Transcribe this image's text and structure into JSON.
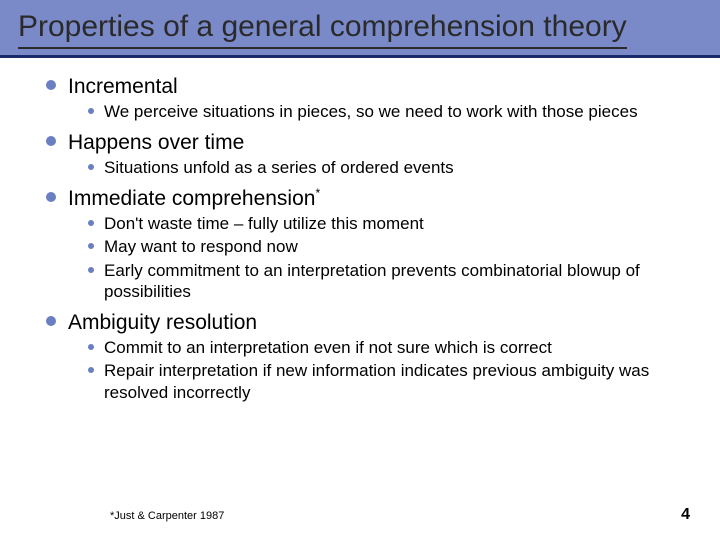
{
  "slide": {
    "title": "Properties of a general comprehension theory",
    "title_fontsize": 30,
    "title_color": "#2a2a2a",
    "header_bg": "#7a8ac9",
    "header_rule_color": "#1a2a6b",
    "bullet_color": "#6a7fc1",
    "body_bg": "#ffffff",
    "items": [
      {
        "label": "Incremental",
        "superscript": "",
        "subs": [
          "We perceive situations in pieces, so we need to work with those pieces"
        ]
      },
      {
        "label": "Happens over time",
        "superscript": "",
        "subs": [
          "Situations unfold as a series of ordered events"
        ]
      },
      {
        "label": "Immediate comprehension",
        "superscript": "*",
        "subs": [
          "Don't waste time – fully utilize this moment",
          "May want to respond now",
          "Early commitment to an interpretation prevents combinatorial blowup of possibilities"
        ]
      },
      {
        "label": "Ambiguity resolution",
        "superscript": "",
        "subs": [
          "Commit to an interpretation even if not sure which is correct",
          "Repair interpretation if new information indicates previous ambiguity was resolved incorrectly"
        ]
      }
    ],
    "footnote": "*Just & Carpenter 1987",
    "page_number": "4",
    "top_fontsize": 21,
    "sub_fontsize": 17,
    "footnote_fontsize": 11,
    "page_fontsize": 16
  }
}
